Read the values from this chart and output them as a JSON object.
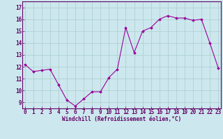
{
  "x": [
    0,
    1,
    2,
    3,
    4,
    5,
    6,
    7,
    8,
    9,
    10,
    11,
    12,
    13,
    14,
    15,
    16,
    17,
    18,
    19,
    20,
    21,
    22,
    23
  ],
  "y": [
    12.2,
    11.6,
    11.7,
    11.8,
    10.5,
    9.2,
    8.7,
    9.3,
    9.9,
    9.9,
    11.1,
    11.8,
    15.3,
    13.2,
    15.0,
    15.3,
    16.0,
    16.3,
    16.1,
    16.1,
    15.9,
    16.0,
    14.0,
    11.9
  ],
  "line_color": "#990099",
  "marker": "D",
  "marker_size": 2.0,
  "bg_color": "#cce8ee",
  "grid_color": "#aacccc",
  "xlabel": "Windchill (Refroidissement éolien,°C)",
  "xlabel_color": "#660066",
  "tick_color": "#660066",
  "ylim": [
    8.5,
    17.5
  ],
  "yticks": [
    9,
    10,
    11,
    12,
    13,
    14,
    15,
    16,
    17
  ],
  "xticks": [
    0,
    1,
    2,
    3,
    4,
    5,
    6,
    7,
    8,
    9,
    10,
    11,
    12,
    13,
    14,
    15,
    16,
    17,
    18,
    19,
    20,
    21,
    22,
    23
  ],
  "xlim": [
    -0.3,
    23.3
  ],
  "spine_color": "#660066",
  "label_fontsize": 5.5,
  "tick_fontsize": 5.5
}
